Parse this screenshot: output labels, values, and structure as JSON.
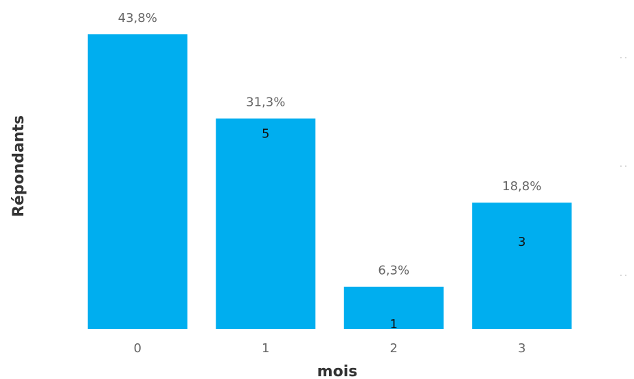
{
  "chart_data": {
    "type": "bar",
    "categories": [
      "0",
      "1",
      "2",
      "3"
    ],
    "values": [
      7,
      5,
      1,
      3
    ],
    "percent_labels": [
      "43,8%",
      "31,3%",
      "6,3%",
      "18,8%"
    ],
    "count_labels": [
      "",
      "5",
      "1",
      "3"
    ],
    "xlabel": "mois",
    "ylabel": "Répondants",
    "ylim": [
      0,
      7
    ],
    "bar_color": "#00AEEF",
    "grid": false
  }
}
